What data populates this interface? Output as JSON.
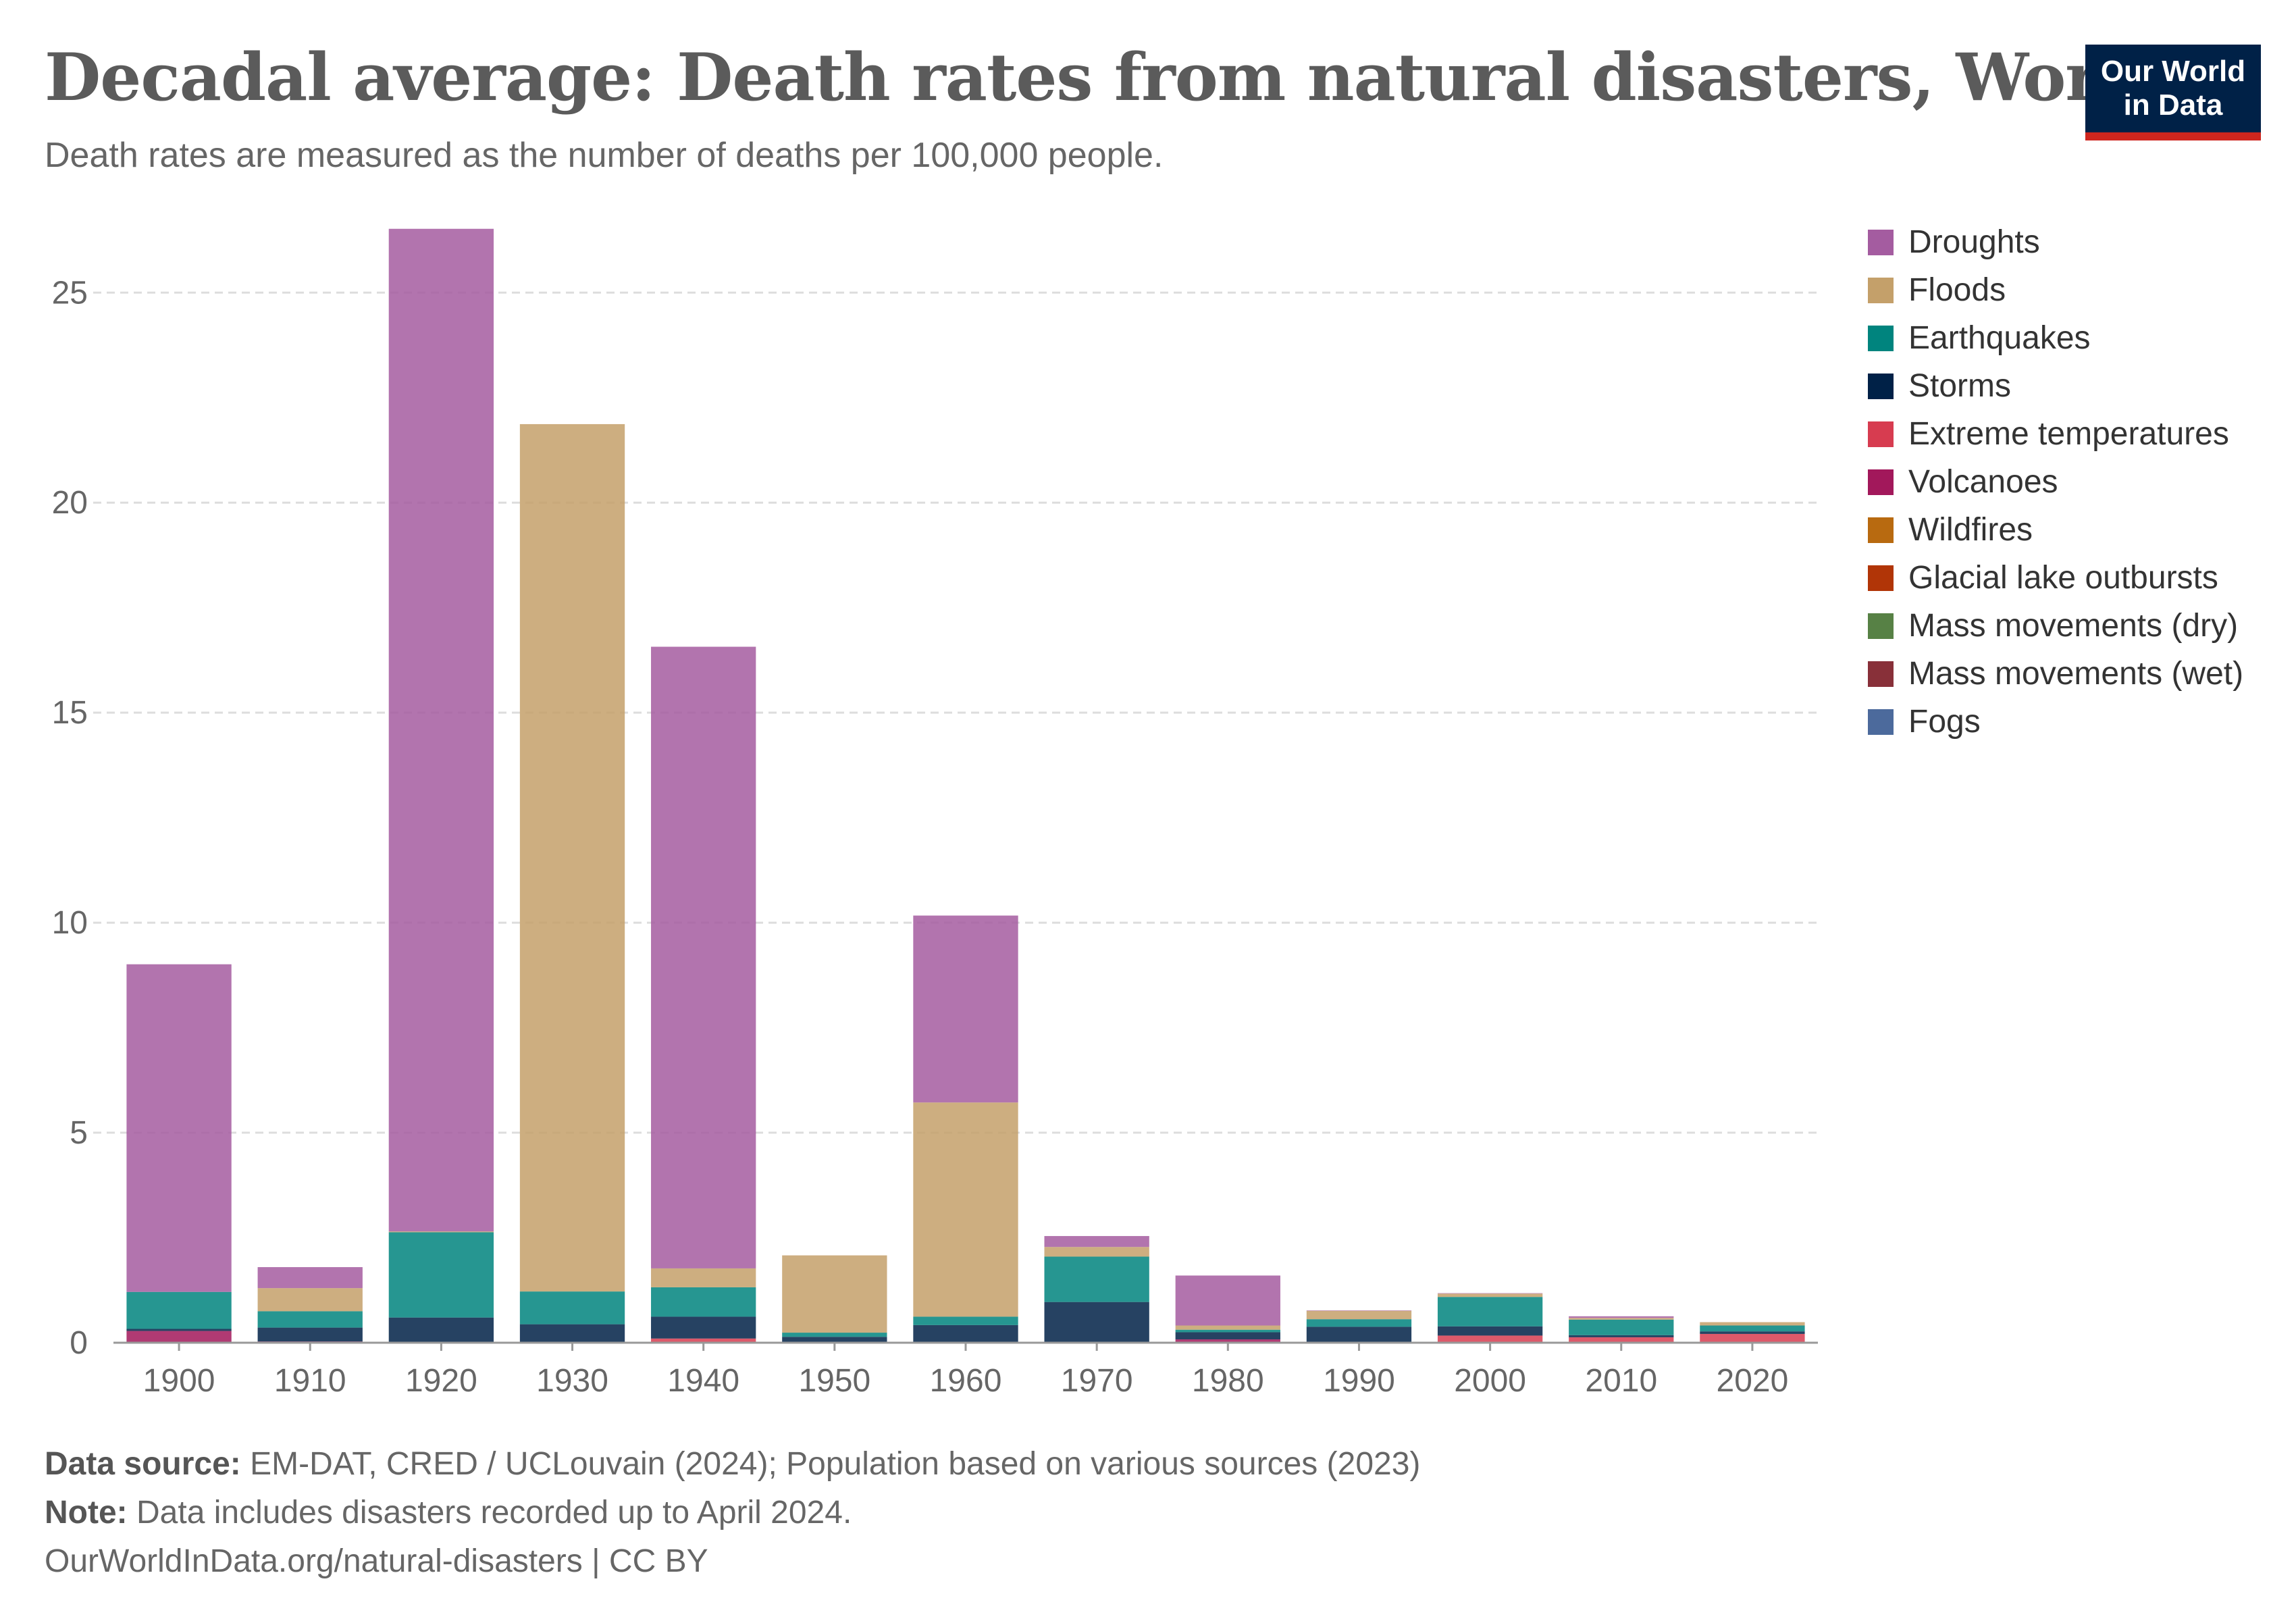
{
  "header": {
    "title": "Decadal average: Death rates from natural disasters, World",
    "subtitle": "Death rates are measured as the number of deaths per 100,000 people.",
    "logo_line1": "Our World",
    "logo_line2": "in Data"
  },
  "chart_data": {
    "type": "bar",
    "stacked": true,
    "categories": [
      "1900",
      "1910",
      "1920",
      "1930",
      "1940",
      "1950",
      "1960",
      "1970",
      "1980",
      "1990",
      "2000",
      "2010",
      "2020"
    ],
    "ylim": [
      0,
      26.5
    ],
    "yticks": [
      0,
      5,
      10,
      15,
      20,
      25
    ],
    "grid": true,
    "legend_position": "right",
    "series": [
      {
        "name": "Fogs",
        "color": "#4c6a9c",
        "values": [
          0,
          0,
          0,
          0,
          0,
          0,
          0,
          0,
          0,
          0,
          0,
          0,
          0
        ]
      },
      {
        "name": "Mass movements (wet)",
        "color": "#883039",
        "values": [
          0,
          0.01,
          0.01,
          0.01,
          0.01,
          0.01,
          0.01,
          0.01,
          0.01,
          0.01,
          0.01,
          0.01,
          0.01
        ]
      },
      {
        "name": "Mass movements (dry)",
        "color": "#578145",
        "values": [
          0,
          0,
          0,
          0,
          0,
          0,
          0,
          0,
          0,
          0,
          0,
          0,
          0
        ]
      },
      {
        "name": "Glacial lake outbursts",
        "color": "#b13507",
        "values": [
          0,
          0,
          0,
          0,
          0,
          0,
          0,
          0,
          0,
          0,
          0,
          0,
          0
        ]
      },
      {
        "name": "Wildfires",
        "color": "#c15065",
        "values": [
          0,
          0,
          0,
          0,
          0,
          0,
          0,
          0,
          0,
          0,
          0,
          0,
          0
        ]
      },
      {
        "name": "Volcanoes",
        "color": "#a2185b",
        "values": [
          0.28,
          0.02,
          0.01,
          0.01,
          0.01,
          0.01,
          0.01,
          0.01,
          0.07,
          0,
          0,
          0,
          0
        ]
      },
      {
        "name": "Extreme temperatures",
        "color": "#d73c50",
        "values": [
          0,
          0,
          0,
          0,
          0.08,
          0,
          0,
          0,
          0,
          0,
          0.16,
          0.12,
          0.2
        ]
      },
      {
        "name": "Storms",
        "color": "#002147",
        "values": [
          0.05,
          0.33,
          0.58,
          0.42,
          0.52,
          0.12,
          0.4,
          0.95,
          0.17,
          0.37,
          0.22,
          0.05,
          0.06
        ]
      },
      {
        "name": "Earthquakes",
        "color": "#00847e",
        "values": [
          0.88,
          0.39,
          2.03,
          0.78,
          0.7,
          0.1,
          0.2,
          1.08,
          0.06,
          0.18,
          0.7,
          0.37,
          0.14
        ]
      },
      {
        "name": "Floods",
        "color": "#c4a06a",
        "values": [
          0,
          0.55,
          0.02,
          20.65,
          0.45,
          1.84,
          5.1,
          0.23,
          0.1,
          0.2,
          0.08,
          0.04,
          0.08
        ]
      },
      {
        "name": "Droughts",
        "color": "#a45ca0",
        "values": [
          7.8,
          0.5,
          23.87,
          0,
          14.8,
          0,
          4.45,
          0.26,
          1.19,
          0.01,
          0.01,
          0.04,
          0
        ]
      }
    ],
    "legend": [
      {
        "name": "Droughts",
        "color": "#a45ca0"
      },
      {
        "name": "Floods",
        "color": "#c4a06a"
      },
      {
        "name": "Earthquakes",
        "color": "#00847e"
      },
      {
        "name": "Storms",
        "color": "#002147"
      },
      {
        "name": "Extreme temperatures",
        "color": "#d73c50"
      },
      {
        "name": "Volcanoes",
        "color": "#a2185b"
      },
      {
        "name": "Wildfires",
        "color": "#b86a10"
      },
      {
        "name": "Glacial lake outbursts",
        "color": "#b13507"
      },
      {
        "name": "Mass movements (dry)",
        "color": "#578145"
      },
      {
        "name": "Mass movements (wet)",
        "color": "#883039"
      },
      {
        "name": "Fogs",
        "color": "#4c6a9c"
      }
    ]
  },
  "footer": {
    "source_label": "Data source:",
    "source_text": "EM-DAT, CRED / UCLouvain (2024); Population based on various sources (2023)",
    "note_label": "Note:",
    "note_text": "Data includes disasters recorded up to April 2024.",
    "url_text": "OurWorldInData.org/natural-disasters | CC BY"
  }
}
